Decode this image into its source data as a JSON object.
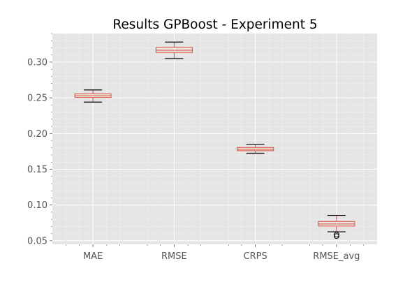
{
  "chart_data": {
    "type": "boxplot",
    "title": "Results GPBoost - Experiment 5",
    "xlabel": "",
    "ylabel": "",
    "categories": [
      "MAE",
      "RMSE",
      "CRPS",
      "RMSE_avg"
    ],
    "boxes": [
      {
        "category": "MAE",
        "whisker_low": 0.244,
        "q1": 0.2505,
        "median": 0.253,
        "q3": 0.2555,
        "whisker_high": 0.261,
        "outliers": []
      },
      {
        "category": "RMSE",
        "whisker_low": 0.305,
        "q1": 0.3135,
        "median": 0.3165,
        "q3": 0.3205,
        "whisker_high": 0.328,
        "outliers": []
      },
      {
        "category": "CRPS",
        "whisker_low": 0.1725,
        "q1": 0.176,
        "median": 0.178,
        "q3": 0.1805,
        "whisker_high": 0.185,
        "outliers": []
      },
      {
        "category": "RMSE_avg",
        "whisker_low": 0.0625,
        "q1": 0.0705,
        "median": 0.0735,
        "q3": 0.077,
        "whisker_high": 0.0855,
        "outliers": [
          0.0565,
          0.0585
        ]
      }
    ],
    "ylim": [
      0.045,
      0.34
    ],
    "yticks": [
      "0.05",
      "0.10",
      "0.15",
      "0.20",
      "0.25",
      "0.30"
    ],
    "grid": true,
    "legend": "none",
    "style": "ggplot"
  },
  "colors": {
    "plot_background": "#e5e5e5",
    "grid": "#ffffff",
    "box": "#e24a33",
    "median": "#e24a33",
    "whisker": "#e24a33",
    "cap": "#000000",
    "outlier": "#000000",
    "tick_text": "#555555",
    "title_text": "#000000"
  }
}
